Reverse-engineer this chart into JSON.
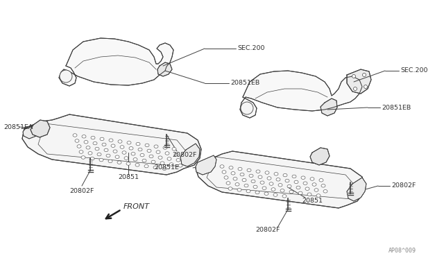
{
  "background_color": "#ffffff",
  "line_color": "#404040",
  "text_color": "#303030",
  "watermark": "AP08^009",
  "labels": {
    "SEC200_top": "SEC.200",
    "20851EB_top": "20851EB",
    "20851EA": "20851EA",
    "20851_left": "20851",
    "20802F_left": "20802F",
    "20802F_mid": "20802F",
    "20851E": "20851E",
    "SEC200_right": "SEC.200",
    "20851EB_right": "20851EB",
    "20802F_right": "20802F",
    "20851_right": "20851",
    "20802F_right_bot": "20802F",
    "FRONT": "FRONT"
  },
  "fig_width": 6.4,
  "fig_height": 3.72,
  "dpi": 100
}
